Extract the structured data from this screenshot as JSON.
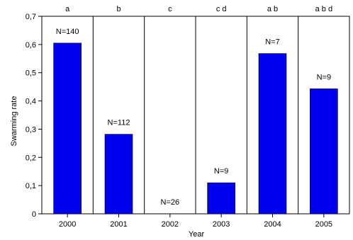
{
  "chart_data": {
    "type": "bar",
    "categories": [
      "2000",
      "2001",
      "2002",
      "2003",
      "2004",
      "2005"
    ],
    "values": [
      0.605,
      0.282,
      0.0,
      0.11,
      0.568,
      0.443
    ],
    "bar_labels": [
      "N=140",
      "N=112",
      "N=26",
      "N=9",
      "N=7",
      "N=9"
    ],
    "group_letters": [
      "a",
      "b",
      "c",
      "c d",
      "a b",
      "a b d"
    ],
    "xlabel": "Year",
    "ylabel": "Swarming rate",
    "ylim": [
      0,
      0.7
    ],
    "yticks": [
      0,
      0.1,
      0.2,
      0.3,
      0.4,
      0.5,
      0.6,
      0.7
    ],
    "ytick_labels": [
      "0",
      "0,1",
      "0,2",
      "0,3",
      "0,4",
      "0,5",
      "0,6",
      "0,7"
    ],
    "grid": "vertical lines between categories",
    "bar_color": "#0000ee"
  }
}
